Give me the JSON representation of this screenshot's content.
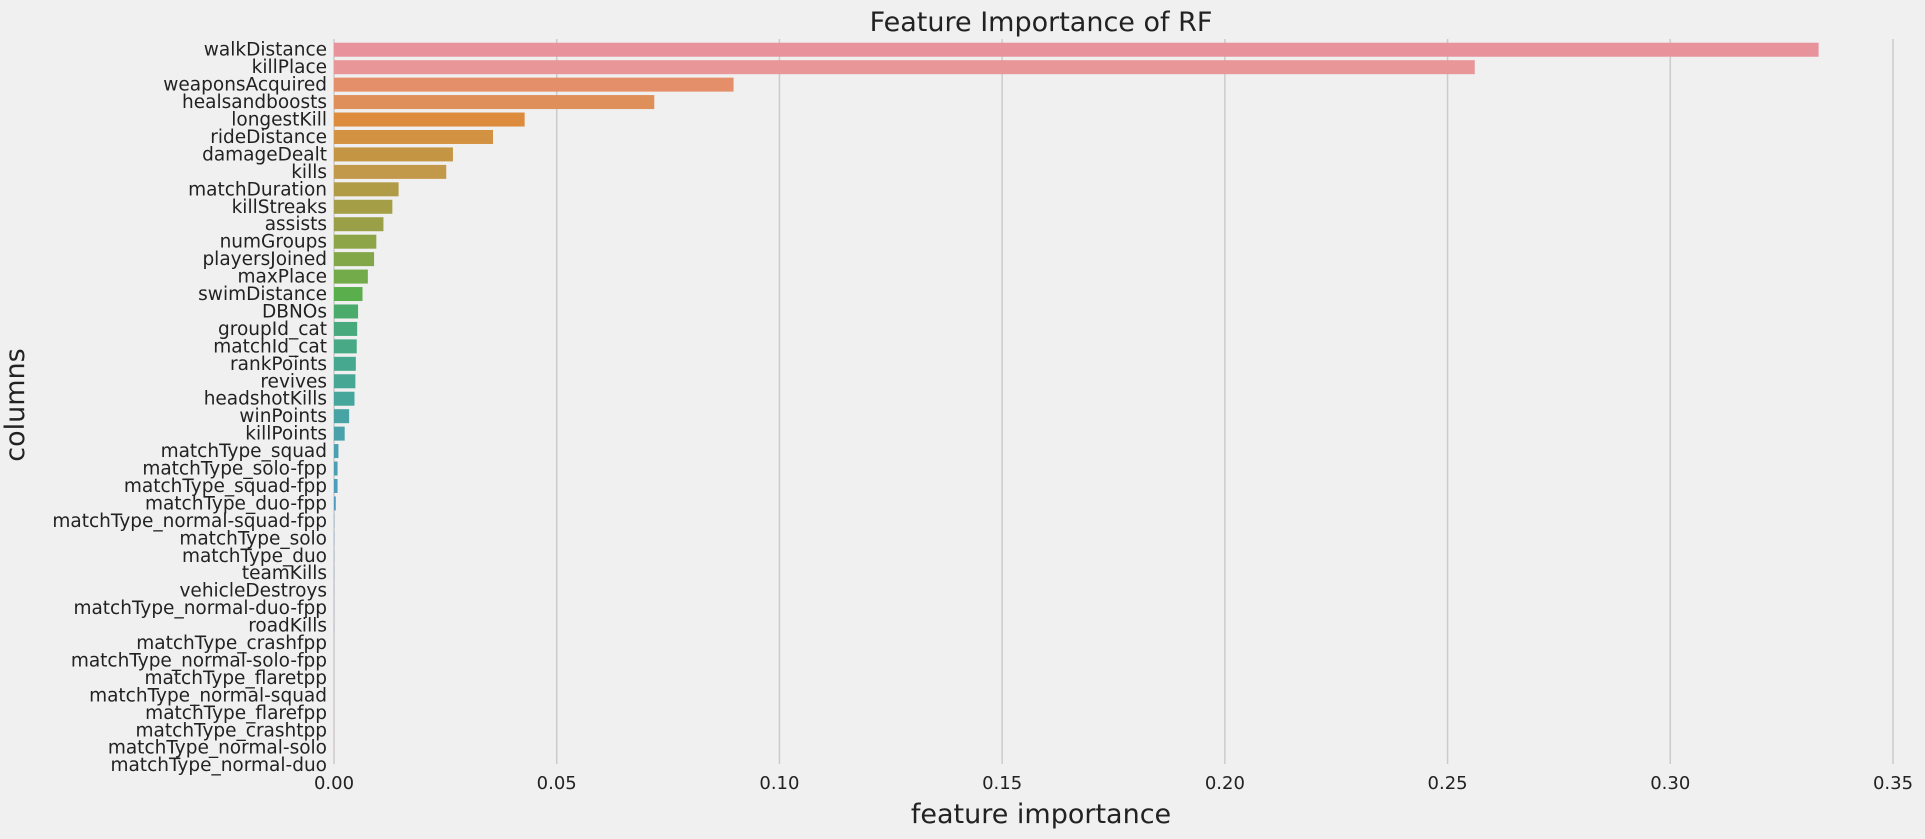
{
  "chart_data": {
    "type": "bar",
    "orientation": "horizontal",
    "title": "Feature Importance of RF",
    "xlabel": "feature importance",
    "ylabel": "columns",
    "xlim": [
      0,
      0.35
    ],
    "xticks": [
      "0.00",
      "0.05",
      "0.10",
      "0.15",
      "0.20",
      "0.25",
      "0.30",
      "0.35"
    ],
    "grid": "vertical",
    "categories": [
      "walkDistance",
      "killPlace",
      "weaponsAcquired",
      "healsandboosts",
      "longestKill",
      "rideDistance",
      "damageDealt",
      "kills",
      "matchDuration",
      "killStreaks",
      "assists",
      "numGroups",
      "playersJoined",
      "maxPlace",
      "swimDistance",
      "DBNOs",
      "groupId_cat",
      "matchId_cat",
      "rankPoints",
      "revives",
      "headshotKills",
      "winPoints",
      "killPoints",
      "matchType_squad",
      "matchType_solo-fpp",
      "matchType_squad-fpp",
      "matchType_duo-fpp",
      "matchType_normal-squad-fpp",
      "matchType_solo",
      "matchType_duo",
      "teamKills",
      "vehicleDestroys",
      "matchType_normal-duo-fpp",
      "roadKills",
      "matchType_crashfpp",
      "matchType_normal-solo-fpp",
      "matchType_flaretpp",
      "matchType_normal-squad",
      "matchType_flarefpp",
      "matchType_crashtpp",
      "matchType_normal-solo",
      "matchType_normal-duo"
    ],
    "values": [
      0.3333,
      0.2561,
      0.0897,
      0.0719,
      0.0428,
      0.0357,
      0.0267,
      0.0252,
      0.0145,
      0.0131,
      0.0111,
      0.0095,
      0.009,
      0.0076,
      0.0064,
      0.0054,
      0.0052,
      0.0051,
      0.0049,
      0.0048,
      0.0046,
      0.0034,
      0.0024,
      0.001,
      0.0008,
      0.0008,
      0.0004,
      5e-05,
      4e-05,
      3e-05,
      3e-05,
      2e-05,
      2e-05,
      2e-05,
      1e-05,
      1e-05,
      1e-05,
      1e-05,
      1e-05,
      1e-05,
      1e-05,
      1e-05
    ],
    "colors": [
      "#e8939c",
      "#e89697",
      "#e48f6a",
      "#de8f5a",
      "#dd8c3d",
      "#d29242",
      "#c49644",
      "#c2984a",
      "#b09b46",
      "#a49e47",
      "#9aa047",
      "#8ea547",
      "#82a749",
      "#73aa4a",
      "#5aaf4c",
      "#4aab6b",
      "#48aa7c",
      "#47a985",
      "#46a88e",
      "#46a794",
      "#47a69b",
      "#48a3a4",
      "#49a2aa",
      "#4aa0b1",
      "#4b9fb5",
      "#4c9cbb",
      "#509ac2",
      "#5597c8",
      "#5c94cf",
      "#6590d6",
      "#7489da",
      "#8784dc",
      "#9a80dc",
      "#ab7cdb",
      "#bb79d8",
      "#c776d2",
      "#d273c8",
      "#db71bd",
      "#e171b1",
      "#e673a6",
      "#e8779c",
      "#e97b94"
    ]
  }
}
